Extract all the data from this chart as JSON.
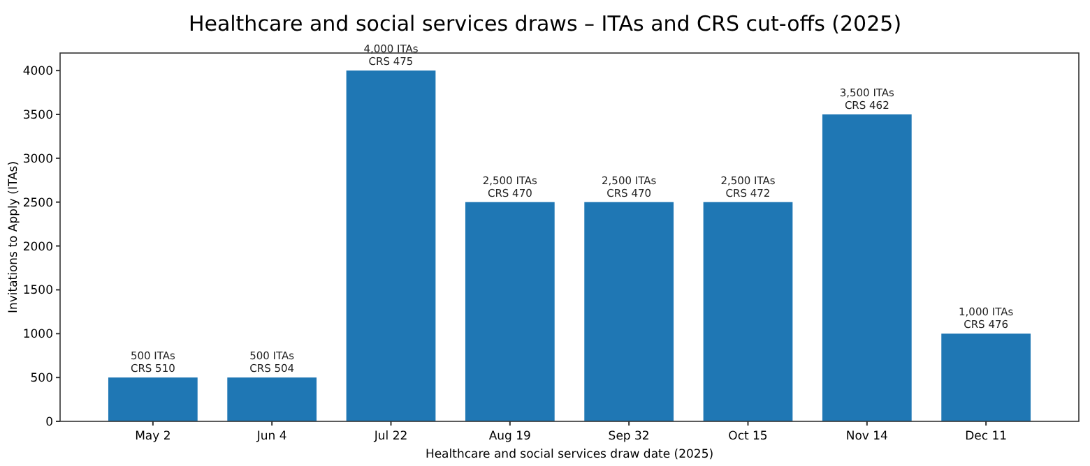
{
  "chart_data": {
    "type": "bar",
    "title": "Healthcare and social services draws – ITAs and CRS cut-offs (2025)",
    "xlabel": "Healthcare and social services draw date (2025)",
    "ylabel": "Invitations to Apply (ITAs)",
    "categories": [
      "May 2",
      "Jun 4",
      "Jul 22",
      "Aug 19",
      "Sep 32",
      "Oct 15",
      "Nov 14",
      "Dec 11"
    ],
    "values": [
      500,
      500,
      4000,
      2500,
      2500,
      2500,
      3500,
      1000
    ],
    "value_labels": [
      "500 ITAs\nCRS 510",
      "500 ITAs\nCRS 504",
      "4,000 ITAs\nCRS 475",
      "2,500 ITAs\nCRS 470",
      "2,500 ITAs\nCRS 470",
      "2,500 ITAs\nCRS 472",
      "3,500 ITAs\nCRS 462",
      "1,000 ITAs\nCRS 476"
    ],
    "color": "#1f77b4",
    "ylim": [
      0,
      4200
    ],
    "yticks": [
      0,
      500,
      1000,
      1500,
      2000,
      2500,
      3000,
      3500,
      4000
    ],
    "grid": false
  }
}
